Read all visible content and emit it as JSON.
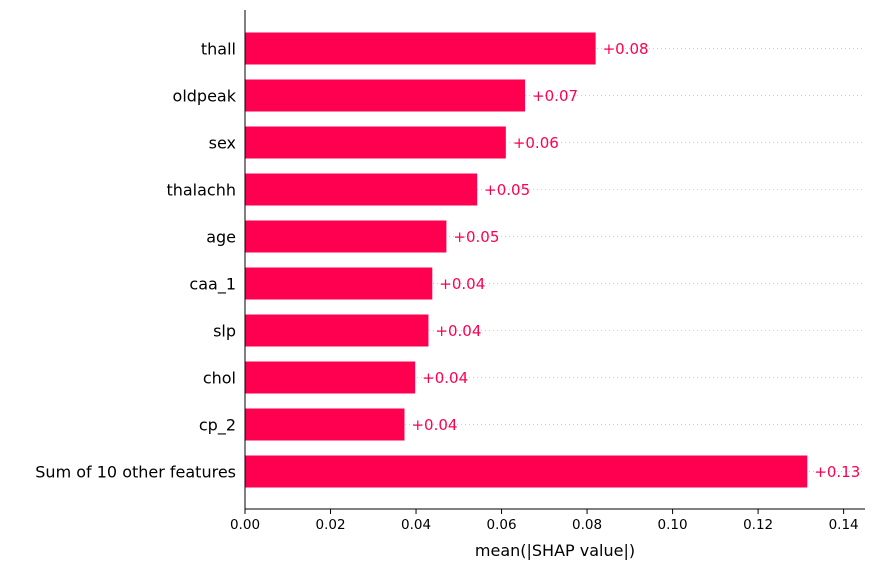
{
  "chart_data": {
    "type": "bar",
    "orientation": "horizontal",
    "categories": [
      "thall",
      "oldpeak",
      "sex",
      "thalachh",
      "age",
      "caa_1",
      "slp",
      "chol",
      "cp_2",
      "Sum of 10 other features"
    ],
    "values": [
      0.082,
      0.0655,
      0.061,
      0.0543,
      0.0471,
      0.0438,
      0.0429,
      0.0398,
      0.0373,
      0.1315
    ],
    "value_labels": [
      "+0.08",
      "+0.07",
      "+0.06",
      "+0.05",
      "+0.05",
      "+0.04",
      "+0.04",
      "+0.04",
      "+0.04",
      "+0.13"
    ],
    "xlabel": "mean(|SHAP value|)",
    "ylabel": "",
    "title": "",
    "xlim": [
      0,
      0.145
    ],
    "xticks": [
      0.0,
      0.02,
      0.04,
      0.06,
      0.08,
      0.1,
      0.12,
      0.14
    ],
    "xtick_labels": [
      "0.00",
      "0.02",
      "0.04",
      "0.06",
      "0.08",
      "0.10",
      "0.12",
      "0.14"
    ],
    "grid": "dotted horizontal guide lines per row",
    "bar_color": "#ff0051",
    "label_color": "#ff0051",
    "legend": "none"
  }
}
